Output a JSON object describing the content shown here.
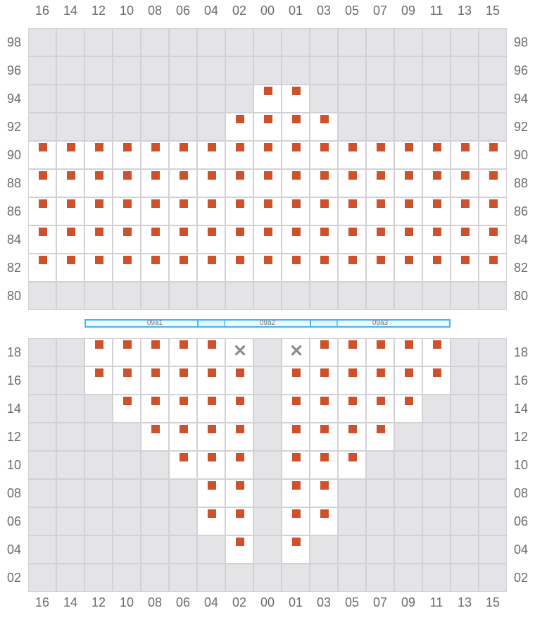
{
  "columns": [
    "16",
    "14",
    "12",
    "10",
    "08",
    "06",
    "04",
    "02",
    "00",
    "01",
    "03",
    "05",
    "07",
    "09",
    "11",
    "13",
    "15"
  ],
  "status_legend": {
    ".": "inactive",
    "w": "active-empty",
    "m": "marked",
    "x": "failed"
  },
  "colors": {
    "marker": "#cd512a",
    "inactive": "#e4e4e6",
    "active": "#ffffff",
    "reticle": "#3db8ee",
    "fail": "#8c8c8c"
  },
  "top_grid": {
    "rows": [
      {
        "label": "98",
        "cells": "................."
      },
      {
        "label": "96",
        "cells": "................."
      },
      {
        "label": "94",
        "cells": "........mm......."
      },
      {
        "label": "92",
        "cells": ".......mmmm......"
      },
      {
        "label": "90",
        "cells": "mmmmmmmmmmmmmmmmm"
      },
      {
        "label": "88",
        "cells": "mmmmmmmmmmmmmmmmm"
      },
      {
        "label": "86",
        "cells": "mmmmmmmmmmmmmmmmm"
      },
      {
        "label": "84",
        "cells": "mmmmmmmmmmmmmmmmm"
      },
      {
        "label": "82",
        "cells": "mmmmmmmmmmmmmmmmm"
      },
      {
        "label": "80",
        "cells": "................."
      }
    ]
  },
  "reticles": [
    {
      "label": "09a1",
      "start_col": 2,
      "span": 5
    },
    {
      "label": "09a2",
      "start_col": 6,
      "span": 5
    },
    {
      "label": "09a3",
      "start_col": 10,
      "span": 5
    }
  ],
  "bottom_grid": {
    "rows": [
      {
        "label": "18",
        "cells": "..mmmmmx.xmmmmm.."
      },
      {
        "label": "16",
        "cells": "..mmmmmm.mmmmmm.."
      },
      {
        "label": "14",
        "cells": "...mmmmm.mmmmm..."
      },
      {
        "label": "12",
        "cells": "....mmmm.mmmm...."
      },
      {
        "label": "10",
        "cells": ".....mmm.mmm....."
      },
      {
        "label": "08",
        "cells": "......mm.mm......"
      },
      {
        "label": "06",
        "cells": "......mm.mm......"
      },
      {
        "label": "04",
        "cells": ".......m.m......."
      },
      {
        "label": "02",
        "cells": "................."
      }
    ]
  },
  "fail_glyph": "✕"
}
